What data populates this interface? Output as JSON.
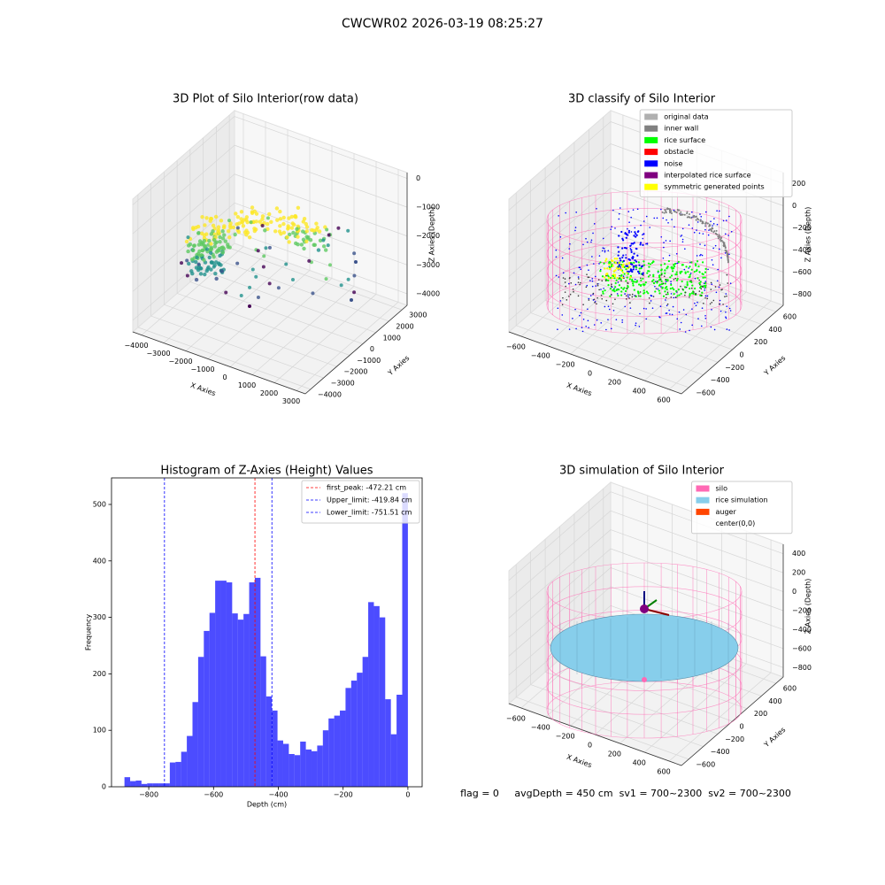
{
  "title": "CWCWR02 2026-03-19 08:25:27",
  "footer": "flag = 0     avgDepth = 450 cm  sv1 = 700~2300  sv2 = 700~2300",
  "chart_data": [
    {
      "type": "scatter3d",
      "title": "3D Plot of Silo Interior(row data)",
      "xlabel": "X Axies",
      "ylabel": "Y Axies",
      "zlabel": "Z Axies (Depth)",
      "xlim": [
        -4400,
        3400
      ],
      "ylim": [
        -4400,
        3400
      ],
      "zlim": [
        -4400,
        200
      ],
      "xticks": [
        {
          "value": -4000,
          "label": "−4000"
        },
        {
          "value": -3000,
          "label": "−3000"
        },
        {
          "value": -2000,
          "label": "−2000"
        },
        {
          "value": -1000,
          "label": "−1000"
        },
        0,
        1000,
        2000,
        3000
      ],
      "yticks": [
        {
          "value": -4000,
          "label": "−4000"
        },
        {
          "value": -3000,
          "label": "−3000"
        },
        {
          "value": -2000,
          "label": "−2000"
        },
        {
          "value": -1000,
          "label": "−1000"
        },
        0,
        1000,
        2000,
        3000
      ],
      "zticks": [
        0,
        {
          "value": -1000,
          "label": "−1000"
        },
        {
          "value": -2000,
          "label": "−2000"
        },
        {
          "value": -3000,
          "label": "−3000"
        },
        {
          "value": -4000,
          "label": "−4000"
        }
      ]
    },
    {
      "type": "scatter3d",
      "title": "3D classify of Silo Interior",
      "xlabel": "X Axies",
      "ylabel": "Y Axies",
      "zlabel": "Z Axies (Depth)",
      "xlim": [
        -700,
        700
      ],
      "ylim": [
        -700,
        700
      ],
      "zlim": [
        -900,
        300
      ],
      "xticks": [
        {
          "value": -600,
          "label": "−600"
        },
        {
          "value": -400,
          "label": "−400"
        },
        {
          "value": -200,
          "label": "−200"
        },
        0,
        200,
        400,
        600
      ],
      "yticks": [
        {
          "value": -600,
          "label": "−600"
        },
        {
          "value": -400,
          "label": "−400"
        },
        {
          "value": -200,
          "label": "−200"
        },
        0,
        200,
        400,
        600
      ],
      "zticks": [
        200,
        0,
        {
          "value": -200,
          "label": "−200"
        },
        {
          "value": -400,
          "label": "−400"
        },
        {
          "value": -600,
          "label": "−600"
        },
        {
          "value": -800,
          "label": "−800"
        }
      ],
      "legend": "upper right",
      "series": [
        {
          "name": "original data",
          "color": "#b0b0b0"
        },
        {
          "name": "inner wall",
          "color": "#808080"
        },
        {
          "name": "rice surface",
          "color": "#00ff00"
        },
        {
          "name": "obstacle",
          "color": "#ff0000"
        },
        {
          "name": "noise",
          "color": "#0000ff"
        },
        {
          "name": "interpolated rice surface",
          "color": "#800080"
        },
        {
          "name": "symmetric generated points",
          "color": "#ffff00"
        }
      ]
    },
    {
      "type": "histogram",
      "title": "Histogram of Z-Axies (Height) Values",
      "xlabel": "Depth (cm)",
      "ylabel": "Frequency",
      "color": "#0000ff",
      "alpha": 0.7,
      "xlim": [
        -915,
        44
      ],
      "ylim": [
        0,
        547
      ],
      "xticks": [
        {
          "value": -800,
          "label": "−800"
        },
        {
          "value": -600,
          "label": "−600"
        },
        {
          "value": -400,
          "label": "−400"
        },
        {
          "value": -200,
          "label": "−200"
        },
        0
      ],
      "yticks": [
        0,
        100,
        200,
        300,
        400,
        500
      ],
      "bins": [
        -875,
        -857.5,
        -840,
        -822.5,
        -805,
        -787.5,
        -770,
        -752.5,
        -735,
        -717.5,
        -700,
        -682.5,
        -665,
        -647.5,
        -630,
        -612.5,
        -595,
        -577.5,
        -560,
        -542.5,
        -525,
        -507.5,
        -490,
        -472.5,
        -455,
        -437.5,
        -420,
        -402.5,
        -385,
        -367.5,
        -350,
        -332.5,
        -315,
        -297.5,
        -280,
        -262.5,
        -245,
        -227.5,
        -210,
        -192.5,
        -175,
        -157.5,
        -140,
        -122.5,
        -105,
        -87.5,
        -70,
        -52.5,
        -35,
        -17.5,
        0
      ],
      "counts": [
        17,
        10,
        11,
        5,
        6,
        6,
        6,
        6,
        43,
        44,
        62,
        90,
        150,
        230,
        276,
        308,
        365,
        365,
        362,
        307,
        296,
        306,
        362,
        370,
        231,
        160,
        135,
        82,
        76,
        58,
        56,
        80,
        66,
        63,
        73,
        100,
        121,
        126,
        135,
        175,
        188,
        202,
        230,
        327,
        320,
        300,
        155,
        93,
        163,
        520
      ],
      "legend": "upper right",
      "lines": [
        {
          "name": "first_peak: -472.21 cm",
          "value": -472.21,
          "color": "#ff0000"
        },
        {
          "name": "Upper_limit: -419.84 cm",
          "value": -419.84,
          "color": "#0000ff"
        },
        {
          "name": "Lower_limit: -751.51 cm",
          "value": -751.51,
          "color": "#0000ff"
        }
      ]
    },
    {
      "type": "surface3d",
      "title": "3D simulation of Silo Interior",
      "xlabel": "X Axies",
      "ylabel": "Y Axies",
      "zlabel": "Z Axies (Depth)",
      "xlim": [
        -700,
        700
      ],
      "ylim": [
        -700,
        700
      ],
      "zlim": [
        -900,
        500
      ],
      "xticks": [
        {
          "value": -600,
          "label": "−600"
        },
        {
          "value": -400,
          "label": "−400"
        },
        {
          "value": -200,
          "label": "−200"
        },
        0,
        200,
        400,
        600
      ],
      "yticks": [
        {
          "value": -600,
          "label": "−600"
        },
        {
          "value": -400,
          "label": "−400"
        },
        {
          "value": -200,
          "label": "−200"
        },
        0,
        200,
        400,
        600
      ],
      "zticks": [
        400,
        200,
        0,
        {
          "value": -200,
          "label": "−200"
        },
        {
          "value": -400,
          "label": "−400"
        },
        {
          "value": -600,
          "label": "−600"
        },
        {
          "value": -800,
          "label": "−800"
        }
      ],
      "legend": "upper right",
      "series": [
        {
          "name": "silo",
          "color": "#ff69b4"
        },
        {
          "name": "rice simulation",
          "color": "#87ceeb"
        },
        {
          "name": "auger",
          "color": "#ff4500"
        },
        {
          "name": "center(0,0)"
        }
      ]
    }
  ]
}
